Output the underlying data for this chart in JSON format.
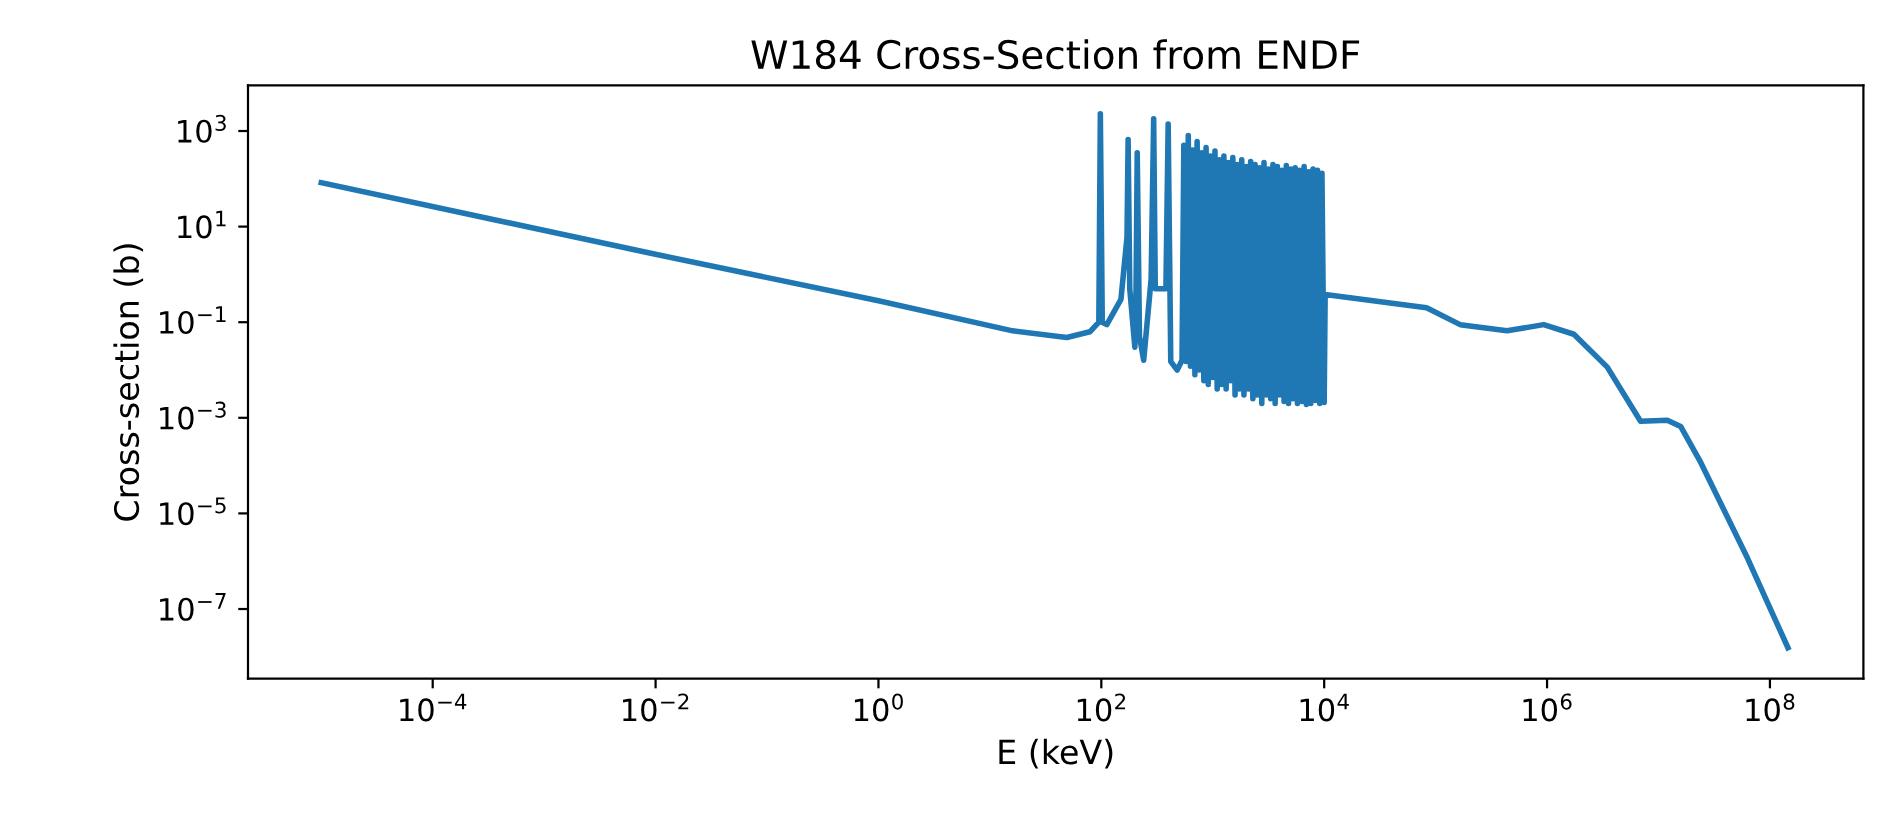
{
  "chart_data": {
    "type": "line",
    "title": "W184 Cross-Section from ENDF",
    "xlabel": "E (keV)",
    "ylabel": "Cross-section (b)",
    "log": "xy",
    "grid": false,
    "line_style": "solid",
    "marker": "none",
    "xlim": [
      2.2e-06,
      690000000.0
    ],
    "ylim": [
      3.5e-09,
      9000
    ],
    "xticks": [
      {
        "value": 0.0001,
        "label": "10$^{−4}$"
      },
      {
        "value": 0.01,
        "label": "10$^{−2}$"
      },
      {
        "value": 1,
        "label": "10$^{0}$"
      },
      {
        "value": 100,
        "label": "10$^{2}$"
      },
      {
        "value": 10000,
        "label": "10$^{4}$"
      },
      {
        "value": 1000000,
        "label": "10$^{6}$"
      },
      {
        "value": 100000000,
        "label": "10$^{8}$"
      }
    ],
    "yticks": [
      {
        "value": 1e-07,
        "label": "10$^{−7}$"
      },
      {
        "value": 1e-05,
        "label": "10$^{−5}$"
      },
      {
        "value": 0.001,
        "label": "10$^{−3}$"
      },
      {
        "value": 0.1,
        "label": "10$^{−1}$"
      },
      {
        "value": 10,
        "label": "10$^{1}$"
      },
      {
        "value": 1000,
        "label": "10$^{3}$"
      }
    ],
    "series": [
      {
        "color": "#1f77b4",
        "x": [
          1e-05,
          0.0095,
          1,
          16,
          49,
          79,
          95,
          98,
          102,
          112,
          150,
          170,
          174,
          180,
          200,
          205,
          210,
          220,
          240,
          280,
          295,
          305,
          380,
          398,
          420,
          480,
          530,
          550,
          575,
          603,
          631,
          661,
          692,
          724,
          759,
          794,
          832,
          871,
          912,
          955,
          1000,
          1047,
          1096,
          1148,
          1202,
          1259,
          1318,
          1380,
          1445,
          1514,
          1585,
          1660,
          1738,
          1820,
          1905,
          1995,
          2089,
          2188,
          2291,
          2399,
          2512,
          2630,
          2754,
          2884,
          3020,
          3162,
          3311,
          3467,
          3631,
          3802,
          3981,
          4169,
          4365,
          4571,
          4786,
          5012,
          5248,
          5495,
          5754,
          6026,
          6310,
          6607,
          6918,
          7244,
          7586,
          7943,
          8318,
          8710,
          9120,
          9550,
          10000,
          10200,
          83000,
          166000,
          437000,
          933000,
          1740000,
          3470000,
          6900000,
          12000000,
          15800000,
          24000000,
          63000000,
          145000000
        ],
        "values": [
          83,
          2.7,
          0.28,
          0.066,
          0.048,
          0.063,
          0.1,
          2300,
          0.1,
          0.089,
          0.3,
          6,
          660,
          0.5,
          0.03,
          0.5,
          350,
          0.05,
          0.016,
          0.8,
          1800,
          0.5,
          0.5,
          1400,
          0.015,
          0.01,
          0.016,
          500,
          0.015,
          800,
          0.012,
          400,
          0.008,
          600,
          0.01,
          350,
          0.006,
          450,
          0.005,
          300,
          0.007,
          380,
          0.004,
          250,
          0.005,
          300,
          0.004,
          220,
          0.006,
          280,
          0.003,
          200,
          0.004,
          250,
          0.003,
          180,
          0.004,
          230,
          0.0025,
          200,
          0.003,
          170,
          0.002,
          220,
          0.003,
          160,
          0.0025,
          200,
          0.002,
          180,
          0.003,
          150,
          0.0022,
          190,
          0.002,
          160,
          0.0025,
          170,
          0.002,
          150,
          0.0022,
          180,
          0.0019,
          140,
          0.002,
          160,
          0.0023,
          150,
          0.002,
          130,
          0.0021,
          0.38,
          0.2,
          0.089,
          0.066,
          0.089,
          0.056,
          0.0115,
          0.00085,
          0.00089,
          0.00066,
          0.000115,
          1.15e-06,
          1.55e-08
        ]
      }
    ]
  }
}
